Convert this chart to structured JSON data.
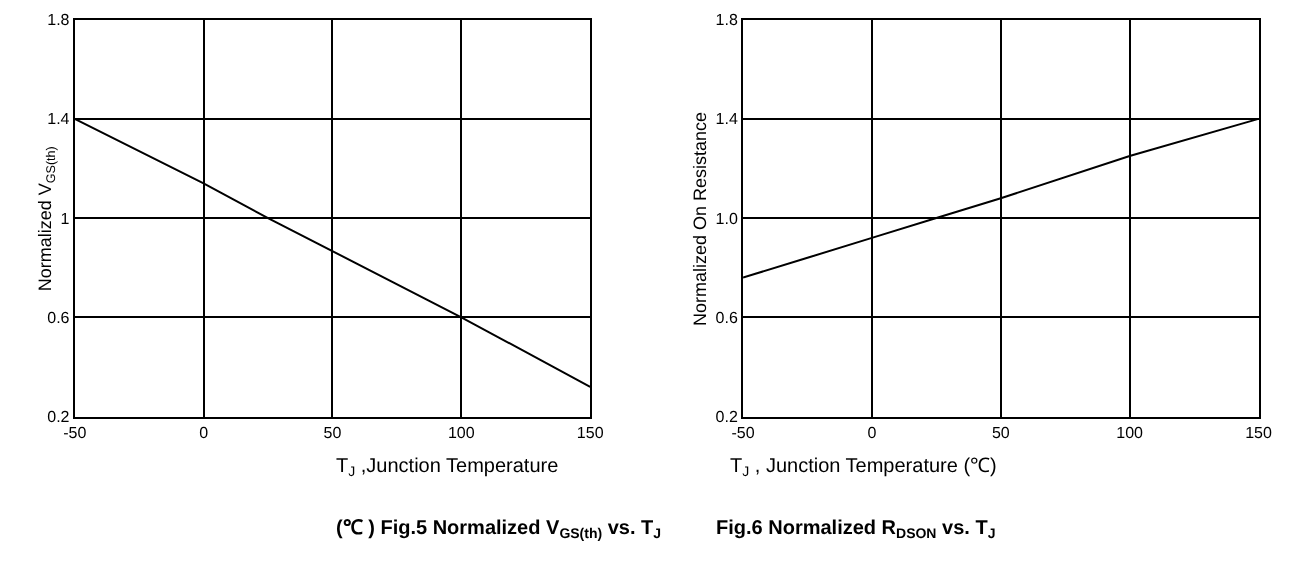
{
  "chart_data": [
    {
      "type": "line",
      "title": "(℃ ) Fig.5 Normalized V$_{GS(th)}$ vs. T$_{J}$",
      "xlabel": "T$_{J}$ ,Junction Temperature",
      "ylabel": "Normalized V$_{GS(th)}$",
      "x": [
        -50,
        0,
        25,
        100,
        150
      ],
      "series": [
        {
          "color": "#000000",
          "values": [
            1.4,
            1.14,
            1.0,
            0.6,
            0.32
          ]
        }
      ],
      "xlim": [
        -50,
        150
      ],
      "xticks": [
        -50,
        0,
        50,
        100,
        150
      ],
      "ylim": [
        0.2,
        1.8
      ],
      "yticks": [
        0.2,
        0.6,
        1,
        1.4,
        1.8
      ],
      "grid": true,
      "marker": "none",
      "line_style": "solid"
    },
    {
      "type": "line",
      "title": "Fig.6 Normalized R$_{DSON}$ vs. T$_{J}$",
      "xlabel": "T$_{J}$ , Junction Temperature (℃)",
      "ylabel": "Normalized On Resistance",
      "x": [
        -50,
        -25,
        0,
        25,
        50,
        100,
        150
      ],
      "series": [
        {
          "color": "#000000",
          "values": [
            0.76,
            0.84,
            0.92,
            1.0,
            1.08,
            1.25,
            1.4
          ]
        }
      ],
      "xlim": [
        -50,
        150
      ],
      "xticks": [
        -50,
        0,
        50,
        100,
        150
      ],
      "ylim": [
        0.2,
        1.8
      ],
      "yticks": [
        0.2,
        0.6,
        {
          "value": 1,
          "label": "1.0"
        },
        1.4,
        1.8
      ],
      "grid": true,
      "marker": "none",
      "line_style": "solid"
    }
  ]
}
